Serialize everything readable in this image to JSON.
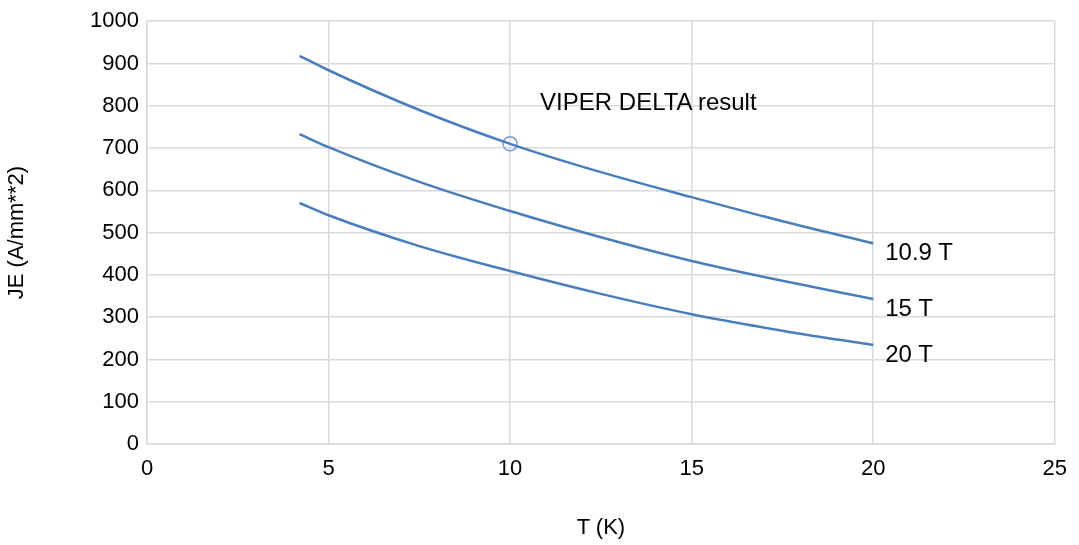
{
  "chart_data": {
    "type": "line",
    "xlabel": "T (K)",
    "ylabel": "JE (A/mm**2)",
    "xlim": [
      0,
      25
    ],
    "xticks": [
      0,
      5,
      10,
      15,
      20,
      25
    ],
    "ylim": [
      0,
      1000
    ],
    "yticks": [
      0,
      100,
      200,
      300,
      400,
      500,
      600,
      700,
      800,
      900,
      1000
    ],
    "grid": true,
    "legend": false,
    "marker": "none",
    "line_style": "solid",
    "series": [
      {
        "name": "10.9 T",
        "color": "#4a7ebb",
        "x": [
          4.2,
          5,
          7.5,
          10,
          12.5,
          15,
          17.5,
          20
        ],
        "values": [
          918,
          884,
          790,
          710,
          643,
          584,
          527,
          475
        ]
      },
      {
        "name": "15 T",
        "color": "#4a7ebb",
        "x": [
          4.2,
          5,
          7.5,
          10,
          12.5,
          15,
          17.5,
          20
        ],
        "values": [
          733,
          702,
          620,
          551,
          489,
          433,
          386,
          343
        ]
      },
      {
        "name": "20 T",
        "color": "#4a7ebb",
        "x": [
          4.2,
          5,
          7.5,
          10,
          12.5,
          15,
          17.5,
          20
        ],
        "values": [
          570,
          541,
          468,
          409,
          355,
          307,
          268,
          234
        ]
      },
      {
        "type": "scatter",
        "marker": "circle",
        "color": "#7f9fcf",
        "x": [
          10
        ],
        "values": [
          710
        ]
      }
    ],
    "annotations": [
      {
        "text": "VIPER DELTA result",
        "x": 10,
        "y": 710
      }
    ]
  }
}
